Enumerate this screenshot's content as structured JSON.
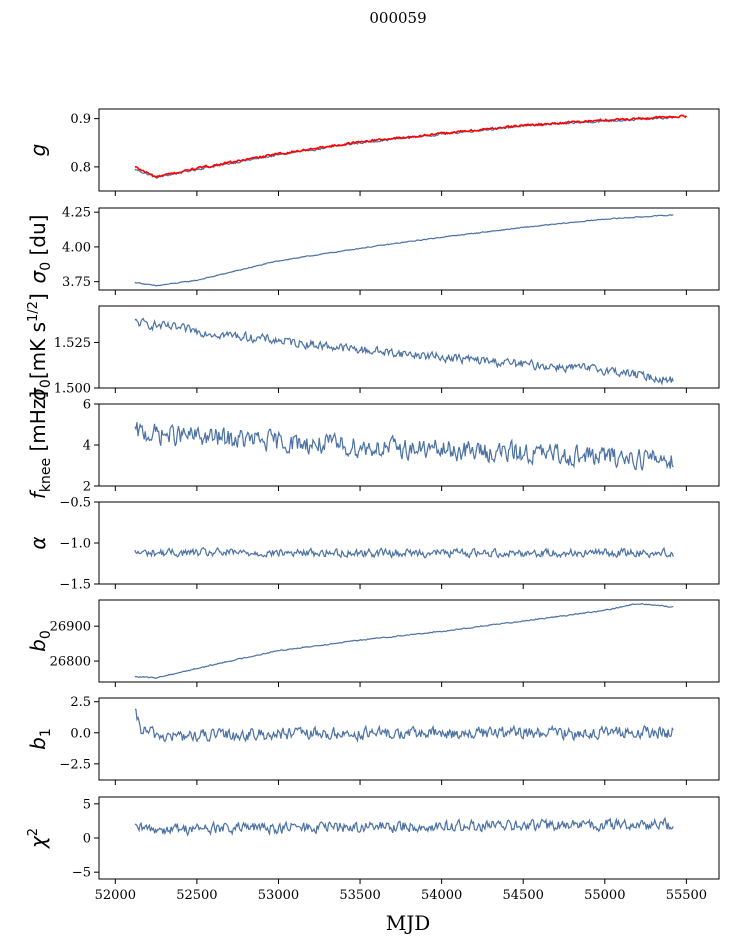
{
  "chart_data": {
    "type": "line",
    "title": "000059",
    "xlabel": "MJD",
    "xlim": [
      51900,
      55700
    ],
    "xticks": [
      52000,
      52500,
      53000,
      53500,
      54000,
      54500,
      55000,
      55500
    ],
    "x_start": 52120,
    "x_end": 55420,
    "line_color": "#4c72a4",
    "overlay_color": "#ff0000",
    "panels": [
      {
        "id": "g",
        "ylabel": "g",
        "ylim": [
          0.75,
          0.92
        ],
        "yticks": [
          0.8,
          0.9
        ],
        "ytick_labels": [
          "0.8",
          "0.9"
        ],
        "trend": [
          [
            52120,
            0.795
          ],
          [
            52250,
            0.778
          ],
          [
            52500,
            0.795
          ],
          [
            53000,
            0.825
          ],
          [
            53500,
            0.85
          ],
          [
            54000,
            0.868
          ],
          [
            54500,
            0.885
          ],
          [
            55000,
            0.895
          ],
          [
            55420,
            0.902
          ]
        ],
        "noise": 0.002,
        "overlay_trend": [
          [
            52120,
            0.8
          ],
          [
            52250,
            0.779
          ],
          [
            52500,
            0.797
          ],
          [
            53000,
            0.827
          ],
          [
            53500,
            0.852
          ],
          [
            54000,
            0.869
          ],
          [
            54500,
            0.886
          ],
          [
            55000,
            0.897
          ],
          [
            55500,
            0.905
          ]
        ],
        "overlay_noise": 0.002
      },
      {
        "id": "sigma0_du",
        "ylabel": "σ0 [du]",
        "ylim": [
          3.69,
          4.28
        ],
        "yticks": [
          3.75,
          4.0,
          4.25
        ],
        "ytick_labels": [
          "3.75",
          "4.00",
          "4.25"
        ],
        "trend": [
          [
            52120,
            3.745
          ],
          [
            52250,
            3.72
          ],
          [
            52500,
            3.76
          ],
          [
            53000,
            3.9
          ],
          [
            53500,
            3.99
          ],
          [
            54000,
            4.07
          ],
          [
            54500,
            4.14
          ],
          [
            55000,
            4.2
          ],
          [
            55420,
            4.23
          ]
        ],
        "noise": 0.003
      },
      {
        "id": "sigma0_mk",
        "ylabel": "σ0[mK s^1/2]",
        "ylim": [
          1.5,
          1.545
        ],
        "yticks": [
          1.5,
          1.525
        ],
        "ytick_labels": [
          "1.500",
          "1.525"
        ],
        "trend": [
          [
            52120,
            1.536
          ],
          [
            52200,
            1.535
          ],
          [
            52600,
            1.53
          ],
          [
            53000,
            1.526
          ],
          [
            53500,
            1.521
          ],
          [
            54000,
            1.517
          ],
          [
            54500,
            1.513
          ],
          [
            55000,
            1.51
          ],
          [
            55420,
            1.504
          ]
        ],
        "noise": 0.0022
      },
      {
        "id": "fknee",
        "ylabel": "f_knee [mHz]",
        "ylim": [
          2,
          6
        ],
        "yticks": [
          2,
          4,
          6
        ],
        "ytick_labels": [
          "2",
          "4",
          "6"
        ],
        "trend": [
          [
            52120,
            4.6
          ],
          [
            52700,
            4.3
          ],
          [
            53500,
            3.9
          ],
          [
            54500,
            3.6
          ],
          [
            55420,
            3.3
          ]
        ],
        "noise": 0.45
      },
      {
        "id": "alpha",
        "ylabel": "α",
        "ylim": [
          -1.5,
          -0.5
        ],
        "yticks": [
          -1.5,
          -1.0,
          -0.5
        ],
        "ytick_labels": [
          "−1.5",
          "−1.0",
          "−0.5"
        ],
        "trend": [
          [
            52120,
            -1.12
          ],
          [
            55420,
            -1.12
          ]
        ],
        "noise": 0.045
      },
      {
        "id": "b0",
        "ylabel": "b0",
        "ylim": [
          26740,
          26975
        ],
        "yticks": [
          26800,
          26900
        ],
        "ytick_labels": [
          "26800",
          "26900"
        ],
        "trend": [
          [
            52120,
            26755
          ],
          [
            52250,
            26752
          ],
          [
            52700,
            26800
          ],
          [
            53000,
            26830
          ],
          [
            53500,
            26860
          ],
          [
            54000,
            26885
          ],
          [
            54500,
            26915
          ],
          [
            55000,
            26945
          ],
          [
            55200,
            26965
          ],
          [
            55420,
            26955
          ]
        ],
        "noise": 1.5
      },
      {
        "id": "b1",
        "ylabel": "b1",
        "ylim": [
          -3.8,
          2.8
        ],
        "yticks": [
          -2.5,
          0.0,
          2.5
        ],
        "ytick_labels": [
          "−2.5",
          "0.0",
          "2.5"
        ],
        "trend": [
          [
            52120,
            1.5
          ],
          [
            52160,
            0.2
          ],
          [
            52300,
            -0.3
          ],
          [
            53000,
            -0.1
          ],
          [
            54000,
            -0.05
          ],
          [
            55000,
            0.0
          ],
          [
            55420,
            0.0
          ]
        ],
        "noise": 0.45
      },
      {
        "id": "chi2",
        "ylabel": "χ2",
        "ylim": [
          -6,
          6
        ],
        "yticks": [
          -5,
          0,
          5
        ],
        "ytick_labels": [
          "−5",
          "0",
          "5"
        ],
        "trend": [
          [
            52120,
            1.3
          ],
          [
            55420,
            2.0
          ]
        ],
        "noise": 0.75
      }
    ]
  }
}
